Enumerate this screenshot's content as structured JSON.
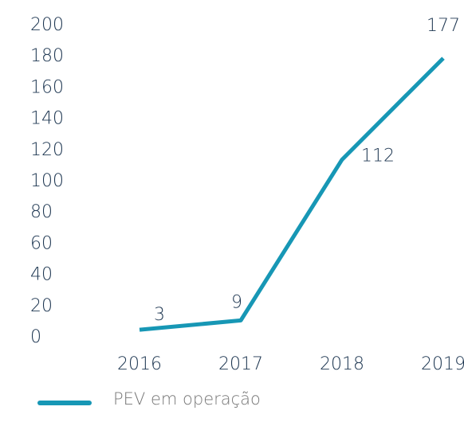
{
  "chart_data": {
    "type": "line",
    "categories": [
      "2016",
      "2017",
      "2018",
      "2019"
    ],
    "series": [
      {
        "name": "PEV em operação",
        "color": "#1797b5",
        "values": [
          3,
          9,
          112,
          177
        ]
      }
    ],
    "ylim": [
      0,
      200
    ],
    "yticks": [
      0,
      20,
      40,
      60,
      80,
      100,
      120,
      140,
      160,
      180,
      200
    ],
    "grid": false,
    "legend": "bottom"
  }
}
